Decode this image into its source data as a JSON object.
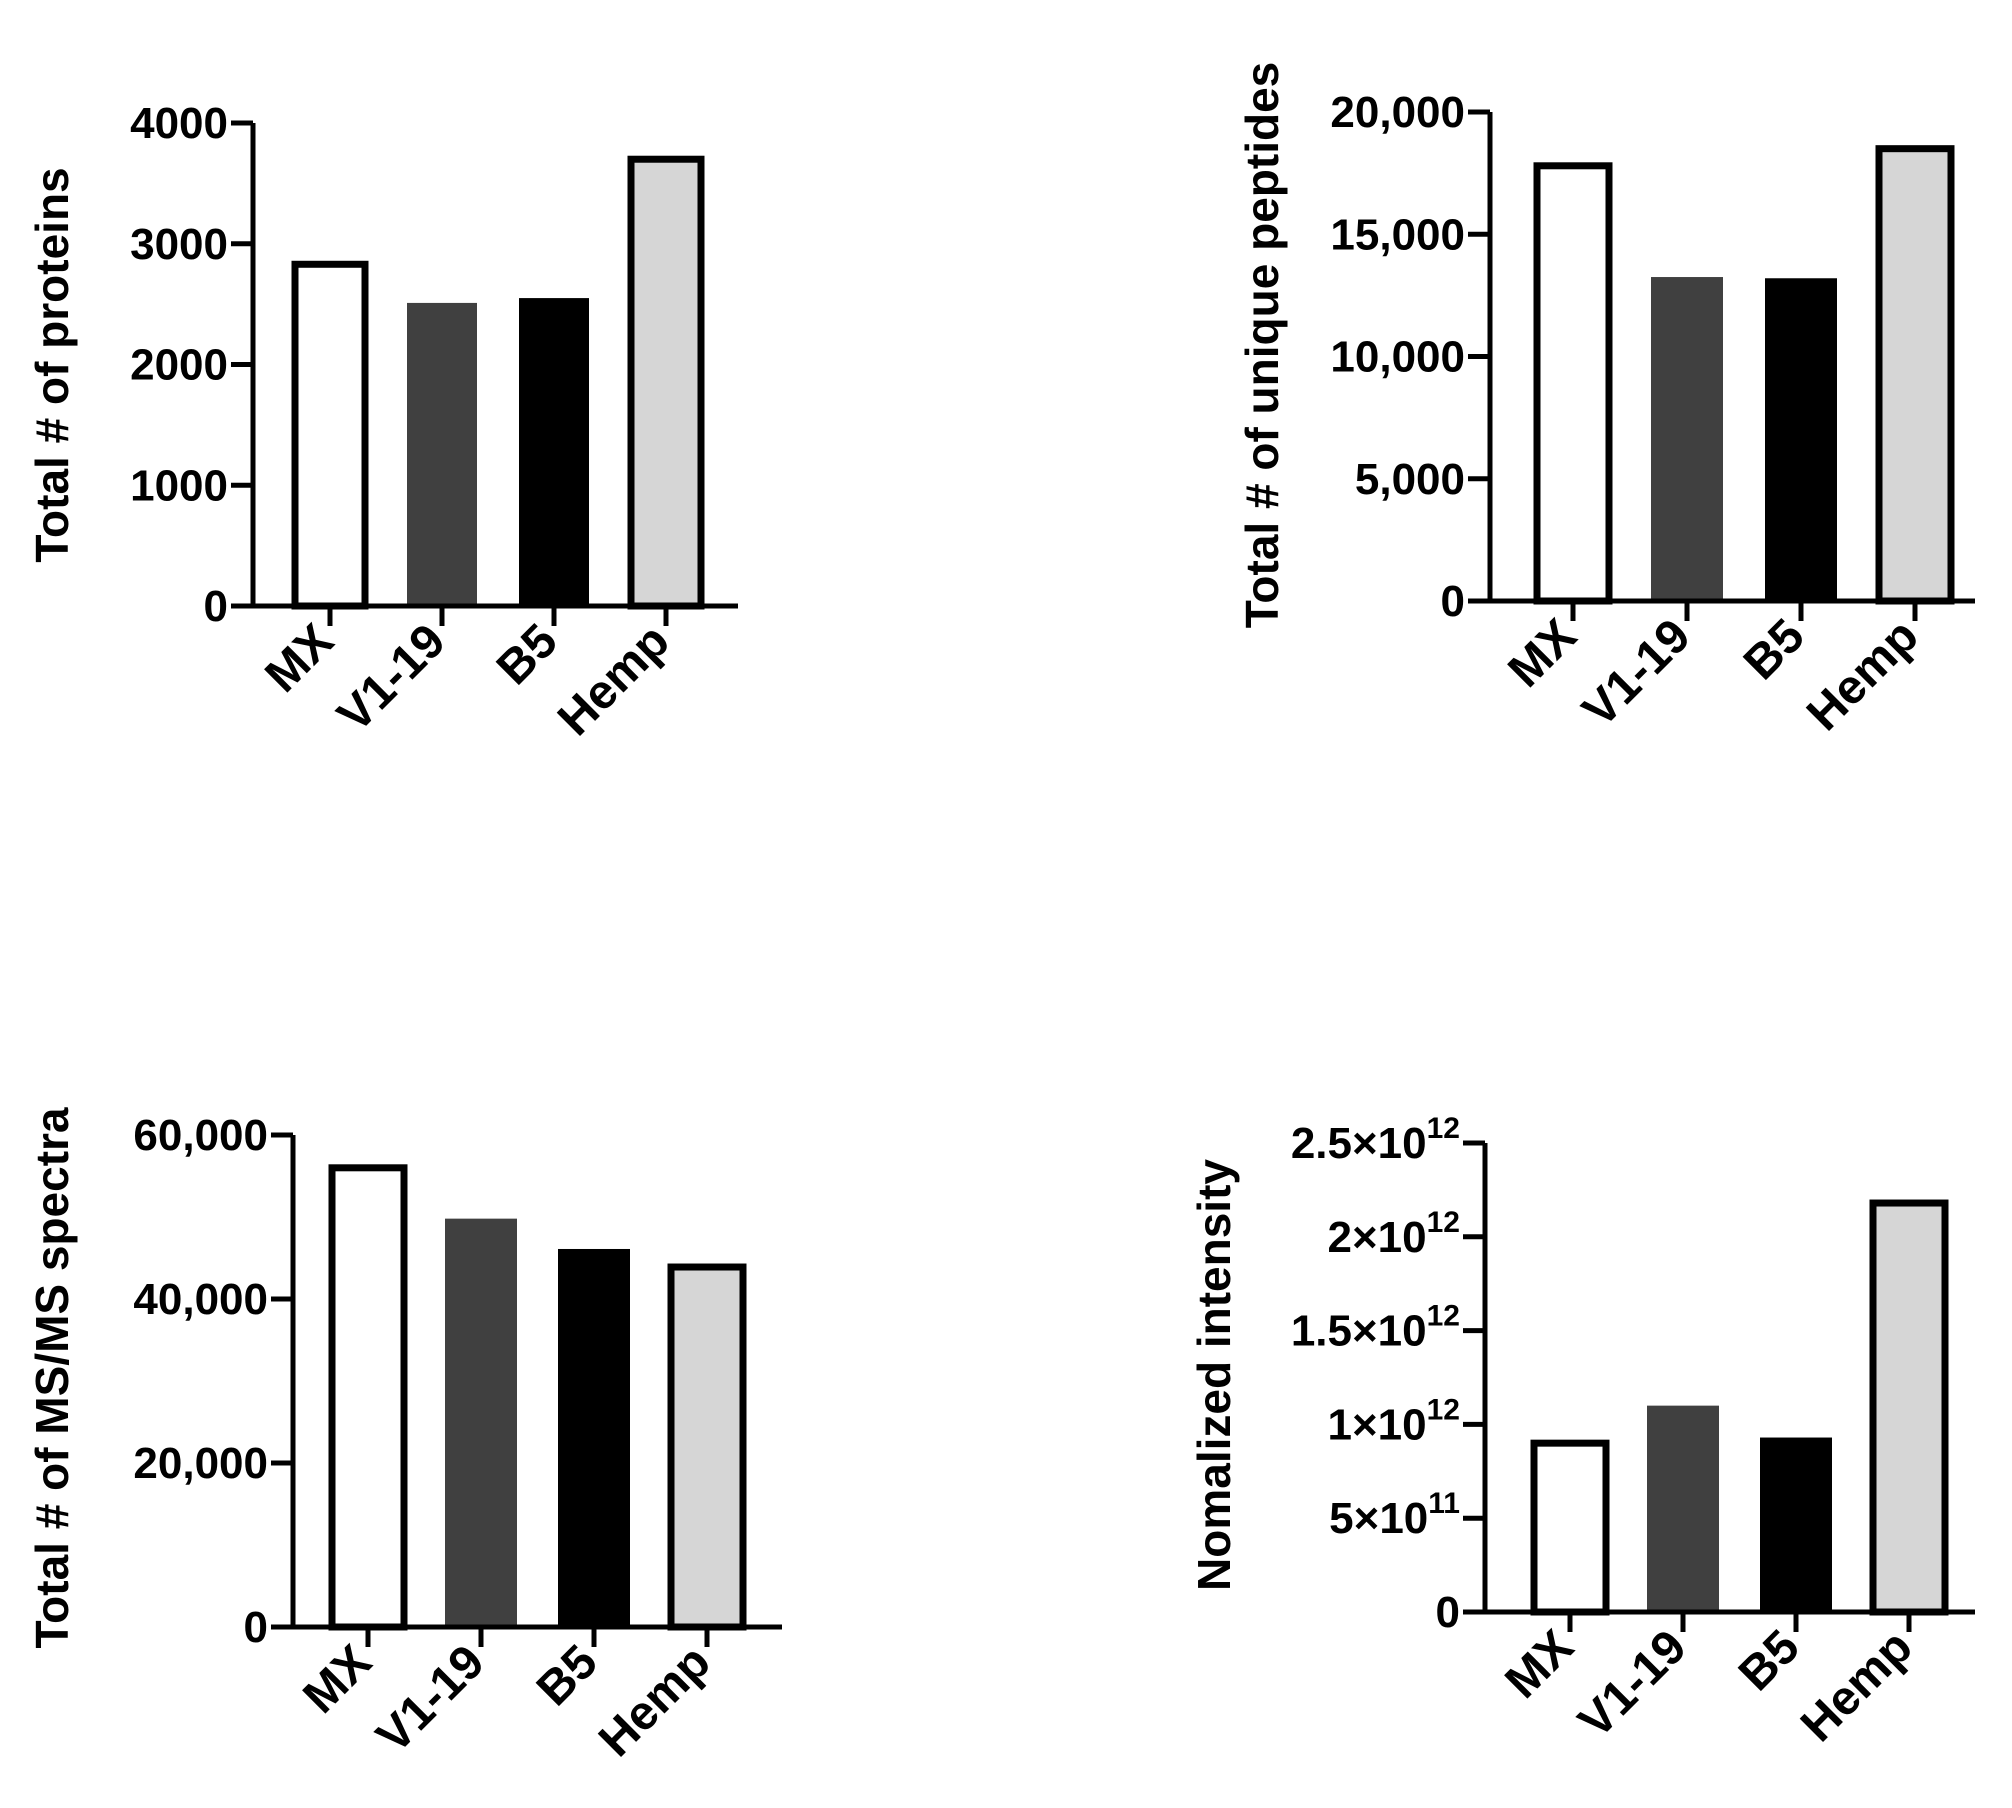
{
  "chart_data": [
    {
      "type": "bar",
      "ylabel": "Total # of proteins",
      "categories": [
        "MX",
        "V1-19",
        "B5",
        "Hemp"
      ],
      "values": [
        2830,
        2510,
        2550,
        3700
      ],
      "ylim": [
        0,
        4000
      ],
      "yticks": [
        "0",
        "1000",
        "2000",
        "3000",
        "4000"
      ],
      "ytick_values": [
        0,
        1000,
        2000,
        3000,
        4000
      ]
    },
    {
      "type": "bar",
      "ylabel": "Total # of unique peptides",
      "categories": [
        "MX",
        "V1-19",
        "B5",
        "Hemp"
      ],
      "values": [
        17800,
        13250,
        13200,
        18500
      ],
      "ylim": [
        0,
        20000
      ],
      "yticks": [
        "0",
        "5,000",
        "10,000",
        "15,000",
        "20,000"
      ],
      "ytick_values": [
        0,
        5000,
        10000,
        15000,
        20000
      ]
    },
    {
      "type": "bar",
      "ylabel": "Total # of MS/MS spectra",
      "categories": [
        "MX",
        "V1-19",
        "B5",
        "Hemp"
      ],
      "values": [
        56000,
        49800,
        46100,
        43900
      ],
      "ylim": [
        0,
        60000
      ],
      "yticks": [
        "0",
        "20,000",
        "40,000",
        "60,000"
      ],
      "ytick_values": [
        0,
        20000,
        40000,
        60000
      ]
    },
    {
      "type": "bar",
      "ylabel": "Nomalized intensity",
      "categories": [
        "MX",
        "V1-19",
        "B5",
        "Hemp"
      ],
      "values": [
        900000000000,
        1100000000000,
        930000000000,
        2180000000000
      ],
      "ylim": [
        0,
        2500000000000
      ],
      "yticks": [
        {
          "base": "0",
          "exp": ""
        },
        {
          "base": "5×10",
          "exp": "11"
        },
        {
          "base": "1×10",
          "exp": "12"
        },
        {
          "base": "1.5×10",
          "exp": "12"
        },
        {
          "base": "2×10",
          "exp": "12"
        },
        {
          "base": "2.5×10",
          "exp": "12"
        }
      ],
      "ytick_values": [
        0,
        500000000000,
        1000000000000,
        1500000000000,
        2000000000000,
        2500000000000
      ]
    }
  ],
  "bar_styles": [
    {
      "fill": "#ffffff",
      "outline": true
    },
    {
      "fill": "#404040",
      "outline": false
    },
    {
      "fill": "#000000",
      "outline": false
    },
    {
      "fill": "#d6d6d6",
      "outline": true
    }
  ]
}
